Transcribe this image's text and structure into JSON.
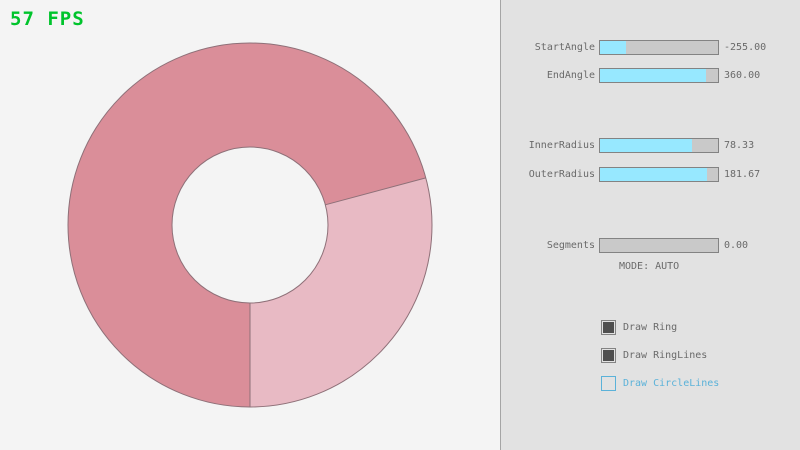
{
  "fps": "57 FPS",
  "colors": {
    "canvas_bg": "#F4F4F4",
    "panel_bg": "#E2E2E2",
    "divider": "#A5A5A5",
    "fps_green": "#00C42C",
    "ring_dark": "#DA8E99",
    "ring_light": "#E8BAC4",
    "ring_outline": "#8E7078",
    "slider_track": "#C9C9C9",
    "slider_fill": "#97E8FF",
    "control_border": "#838383",
    "text": "#6A6A6A",
    "check_fill": "#4F4F4F",
    "focus_blue": "#5BB2D9"
  },
  "controls": {
    "sliders": [
      {
        "label": "StartAngle",
        "value": "-255.00",
        "fill_pct": 21.7
      },
      {
        "label": "EndAngle",
        "value": "360.00",
        "fill_pct": 90.0
      },
      {
        "label": "InnerRadius",
        "value": "78.33",
        "fill_pct": 78.3
      },
      {
        "label": "OuterRadius",
        "value": "181.67",
        "fill_pct": 90.8
      },
      {
        "label": "Segments",
        "value": "0.00",
        "fill_pct": 0
      }
    ],
    "mode_text": "MODE: AUTO",
    "checkboxes": [
      {
        "label": "Draw Ring",
        "checked": true
      },
      {
        "label": "Draw RingLines",
        "checked": true
      },
      {
        "label": "Draw CircleLines",
        "checked": false
      }
    ]
  }
}
